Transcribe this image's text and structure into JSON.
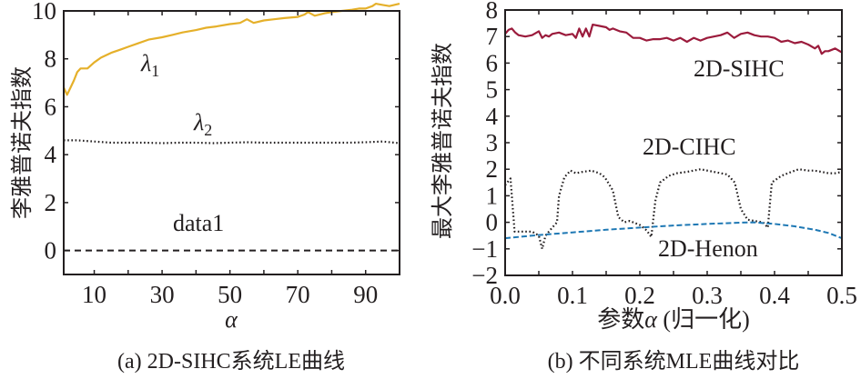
{
  "chart_data": [
    {
      "id": "a",
      "type": "line",
      "caption": "(a) 2D-SIHC系统LE曲线",
      "title": "",
      "xlabel": "α",
      "ylabel": "李雅普诺夫指数",
      "xlim": [
        1,
        100
      ],
      "ylim": [
        -1,
        10
      ],
      "xticks": [
        10,
        20,
        30,
        40,
        50,
        60,
        70,
        80,
        90
      ],
      "xtick_labels": [
        "10",
        "",
        "30",
        "",
        "50",
        "",
        "70",
        "",
        "90"
      ],
      "yticks": [
        0,
        2,
        4,
        6,
        8,
        10
      ],
      "ytick_labels": [
        "0",
        "2",
        "4",
        "6",
        "8",
        "10"
      ],
      "grid": false,
      "series": [
        {
          "name": "λ1",
          "label_main": "λ",
          "label_sub": "1",
          "color": "#E5B02A",
          "style": "solid",
          "x": [
            1,
            2,
            3,
            4,
            5,
            6,
            8,
            10,
            12,
            15,
            18,
            20,
            23,
            26,
            30,
            33,
            36,
            40,
            43,
            46,
            50,
            53,
            55,
            57,
            60,
            63,
            66,
            70,
            72,
            73,
            75,
            78,
            80,
            83,
            86,
            88,
            90,
            92,
            93,
            95,
            97,
            100
          ],
          "y": [
            6.8,
            6.5,
            6.8,
            7.1,
            7.45,
            7.6,
            7.6,
            7.85,
            8.05,
            8.25,
            8.4,
            8.5,
            8.65,
            8.8,
            8.9,
            9.0,
            9.1,
            9.2,
            9.3,
            9.35,
            9.45,
            9.5,
            9.65,
            9.5,
            9.6,
            9.65,
            9.7,
            9.75,
            9.85,
            9.95,
            9.8,
            9.9,
            9.95,
            10.0,
            10.05,
            10.1,
            10.1,
            10.2,
            10.3,
            10.25,
            10.2,
            10.3
          ]
        },
        {
          "name": "λ2",
          "label_main": "λ",
          "label_sub": "2",
          "color": "#231f20",
          "style": "dotted",
          "x": [
            1,
            5,
            10,
            15,
            20,
            25,
            30,
            35,
            40,
            45,
            50,
            55,
            60,
            65,
            70,
            75,
            80,
            85,
            90,
            95,
            100
          ],
          "y": [
            4.6,
            4.6,
            4.55,
            4.5,
            4.5,
            4.5,
            4.48,
            4.5,
            4.5,
            4.48,
            4.5,
            4.52,
            4.5,
            4.5,
            4.5,
            4.5,
            4.5,
            4.5,
            4.52,
            4.55,
            4.48
          ]
        },
        {
          "name": "data1",
          "label_main": "data1",
          "label_sub": "",
          "color": "#231f20",
          "style": "dashed",
          "x": [
            1,
            100
          ],
          "y": [
            0,
            0
          ]
        }
      ]
    },
    {
      "id": "b",
      "type": "line",
      "caption": "(b) 不同系统MLE曲线对比",
      "title": "",
      "xlabel": "参数α (归一化)",
      "xlabel_prefix": "参数",
      "xlabel_symbol": "α",
      "xlabel_suffix": " (归一化)",
      "ylabel": "最大李雅普诺夫指数",
      "xlim": [
        0,
        0.5
      ],
      "ylim": [
        -2,
        8
      ],
      "xticks": [
        0.0,
        0.05,
        0.1,
        0.15,
        0.2,
        0.25,
        0.3,
        0.35,
        0.4,
        0.45,
        0.5
      ],
      "xtick_labels": [
        "0.0",
        "",
        "0.1",
        "",
        "0.2",
        "",
        "0.3",
        "",
        "0.4",
        "",
        "0.5"
      ],
      "yticks": [
        -2,
        -1,
        0,
        1,
        2,
        3,
        4,
        5,
        6,
        7,
        8
      ],
      "ytick_labels": [
        "−2",
        "−1",
        "0",
        "1",
        "2",
        "3",
        "4",
        "5",
        "6",
        "7",
        "8"
      ],
      "grid": false,
      "series": [
        {
          "name": "2D-SIHC",
          "color": "#9B1B3C",
          "style": "solid",
          "x": [
            0.0,
            0.005,
            0.01,
            0.015,
            0.02,
            0.03,
            0.04,
            0.05,
            0.055,
            0.06,
            0.065,
            0.07,
            0.08,
            0.09,
            0.1,
            0.105,
            0.11,
            0.115,
            0.12,
            0.125,
            0.13,
            0.14,
            0.15,
            0.155,
            0.16,
            0.17,
            0.18,
            0.19,
            0.2,
            0.21,
            0.22,
            0.23,
            0.24,
            0.25,
            0.26,
            0.27,
            0.28,
            0.29,
            0.3,
            0.31,
            0.32,
            0.33,
            0.34,
            0.35,
            0.36,
            0.37,
            0.38,
            0.39,
            0.4,
            0.41,
            0.42,
            0.43,
            0.44,
            0.45,
            0.46,
            0.465,
            0.47,
            0.475,
            0.48,
            0.49,
            0.5
          ],
          "y": [
            7.1,
            7.25,
            7.3,
            7.15,
            7.05,
            7.0,
            7.05,
            7.2,
            6.95,
            7.05,
            7.0,
            7.1,
            7.15,
            7.05,
            7.1,
            6.95,
            7.3,
            7.0,
            7.3,
            7.0,
            7.45,
            7.4,
            7.35,
            7.25,
            7.3,
            7.2,
            7.15,
            6.95,
            6.95,
            6.85,
            6.9,
            6.9,
            6.95,
            6.85,
            6.95,
            6.8,
            6.95,
            6.85,
            6.95,
            7.0,
            7.05,
            7.15,
            6.95,
            7.1,
            7.15,
            7.05,
            7.0,
            7.0,
            6.95,
            6.8,
            6.85,
            6.75,
            6.8,
            6.7,
            6.55,
            6.65,
            6.35,
            6.45,
            6.45,
            6.55,
            6.4
          ]
        },
        {
          "name": "2D-CIHC",
          "color": "#231f20",
          "style": "dotted",
          "x": [
            0.0,
            0.008,
            0.014,
            0.02,
            0.03,
            0.04,
            0.05,
            0.055,
            0.06,
            0.07,
            0.077,
            0.08,
            0.088,
            0.097,
            0.105,
            0.115,
            0.128,
            0.14,
            0.148,
            0.16,
            0.168,
            0.177,
            0.185,
            0.19,
            0.2,
            0.21,
            0.217,
            0.223,
            0.23,
            0.243,
            0.255,
            0.27,
            0.29,
            0.31,
            0.33,
            0.341,
            0.35,
            0.36,
            0.37,
            0.383,
            0.39,
            0.396,
            0.41,
            0.425,
            0.436,
            0.45,
            0.459,
            0.47,
            0.48,
            0.49,
            0.5
          ],
          "y": [
            1.4,
            1.65,
            -0.35,
            -0.35,
            -0.35,
            -0.35,
            -0.5,
            -1.0,
            -0.5,
            -0.2,
            0.0,
            1.0,
            1.7,
            1.95,
            1.85,
            1.9,
            1.95,
            1.85,
            1.7,
            1.2,
            0.2,
            0.0,
            0.05,
            0.0,
            -0.1,
            -0.3,
            -0.55,
            0.8,
            1.5,
            1.75,
            1.85,
            1.9,
            2.0,
            1.9,
            1.8,
            1.5,
            0.5,
            0.1,
            0.05,
            0.0,
            -0.2,
            1.5,
            1.75,
            1.9,
            2.0,
            1.95,
            1.95,
            1.9,
            1.85,
            1.85,
            1.9
          ]
        },
        {
          "name": "2D-Henon",
          "color": "#1E78B4",
          "style": "dashed",
          "x": [
            0.0,
            0.05,
            0.1,
            0.15,
            0.2,
            0.25,
            0.3,
            0.35,
            0.37,
            0.4,
            0.43,
            0.46,
            0.48,
            0.5
          ],
          "y": [
            -0.6,
            -0.48,
            -0.38,
            -0.28,
            -0.2,
            -0.12,
            -0.06,
            -0.01,
            0.0,
            -0.06,
            -0.15,
            -0.28,
            -0.4,
            -0.6
          ]
        }
      ]
    }
  ]
}
